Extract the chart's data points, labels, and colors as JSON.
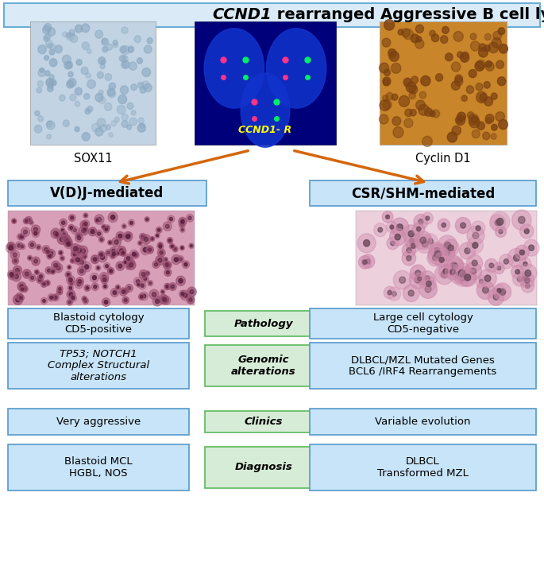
{
  "title_line1": "CCND1",
  "title_line2": " rearranged Aggressive B cell lymphomas",
  "title_bg": "#daeaf7",
  "title_border": "#6aaed6",
  "img_labels": [
    "SOX11",
    "CCND1- R",
    "Cyclin D1"
  ],
  "img_label_colors": [
    "black",
    "#ffff00",
    "black"
  ],
  "left_box_text": "V(D)J-mediated",
  "right_box_text": "CSR/SHM-mediated",
  "pathway_box_bg": "#c8e4f8",
  "pathway_box_border": "#5599cc",
  "center_box_bg": "#d6ecd6",
  "center_box_border": "#5cb85c",
  "left_col_boxes": [
    {
      "text": "Blastoid cytology\nCD5-positive",
      "italic": false
    },
    {
      "text": "TP53; NOTCH1\nComplex Structural\nalterations",
      "italic": true
    },
    {
      "text": "Very aggressive",
      "italic": false
    },
    {
      "text": "Blastoid MCL\nHGBL, NOS",
      "italic": false
    }
  ],
  "right_col_boxes": [
    {
      "text": "Large cell cytology\nCD5-negative",
      "italic": false
    },
    {
      "text": "DLBCL/MZL Mutated Genes\nBCL6 /IRF4 Rearrangements",
      "italic": false
    },
    {
      "text": "Variable evolution",
      "italic": false
    },
    {
      "text": "DLBCL\nTransformed MZL",
      "italic": false
    }
  ],
  "center_row_labels": [
    "Pathology",
    "Genomic\nalterations",
    "Clinics",
    "Diagnosis"
  ],
  "side_box_bg": "#c8e4f8",
  "side_box_border": "#5599cc",
  "arrow_color": "#d4660a",
  "bg_color": "white",
  "fig_w": 6.85,
  "fig_h": 7.17,
  "dpi": 100
}
